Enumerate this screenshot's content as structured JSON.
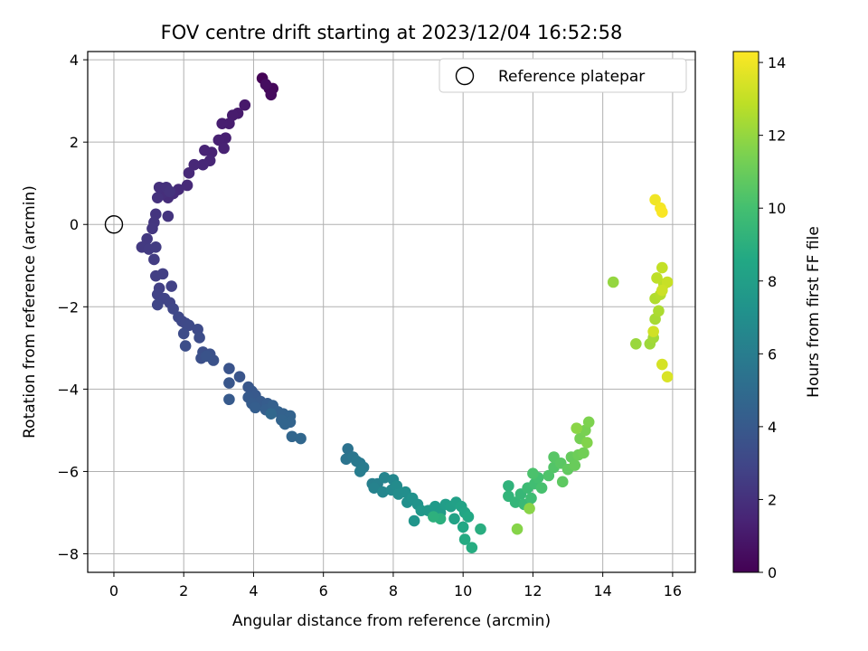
{
  "chart_data": {
    "type": "scatter",
    "title": "FOV centre drift starting at 2023/12/04 16:52:58",
    "xlabel": "Angular distance from reference (arcmin)",
    "ylabel": "Rotation from reference (arcmin)",
    "xlim": [
      -0.75,
      16.65
    ],
    "ylim": [
      -8.45,
      4.2
    ],
    "xticks": [
      0,
      2,
      4,
      6,
      8,
      10,
      12,
      14,
      16
    ],
    "yticks": [
      -8,
      -6,
      -4,
      -2,
      0,
      2,
      4
    ],
    "grid": true,
    "legend": {
      "placement": "top-right",
      "entries": [
        "Reference platepar"
      ]
    },
    "reference_point": {
      "x": 0,
      "y": 0,
      "label": "Reference platepar"
    },
    "colorbar": {
      "label": "Hours from first FF file",
      "colormap": "viridis",
      "range": [
        0,
        14.3
      ],
      "ticks": [
        0,
        2,
        4,
        6,
        8,
        10,
        12,
        14
      ]
    },
    "points": [
      [
        4.25,
        3.55,
        0.1
      ],
      [
        4.45,
        3.3,
        0.2
      ],
      [
        4.55,
        3.3,
        0.3
      ],
      [
        4.5,
        3.15,
        0.4
      ],
      [
        4.35,
        3.4,
        0.5
      ],
      [
        3.75,
        2.9,
        1.0
      ],
      [
        3.55,
        2.7,
        1.05
      ],
      [
        3.4,
        2.65,
        1.1
      ],
      [
        3.3,
        2.45,
        1.15
      ],
      [
        3.1,
        2.45,
        1.2
      ],
      [
        3.2,
        2.1,
        1.25
      ],
      [
        3.0,
        2.05,
        1.3
      ],
      [
        3.15,
        1.85,
        1.35
      ],
      [
        2.8,
        1.75,
        1.4
      ],
      [
        2.6,
        1.8,
        1.45
      ],
      [
        2.75,
        1.55,
        1.5
      ],
      [
        2.55,
        1.45,
        1.55
      ],
      [
        2.3,
        1.45,
        1.6
      ],
      [
        2.15,
        1.25,
        1.65
      ],
      [
        2.1,
        0.95,
        1.7
      ],
      [
        1.85,
        0.85,
        1.75
      ],
      [
        1.7,
        0.75,
        1.8
      ],
      [
        1.55,
        0.65,
        1.85
      ],
      [
        1.4,
        0.75,
        1.9
      ],
      [
        1.3,
        0.9,
        1.95
      ],
      [
        1.5,
        0.9,
        2.0
      ],
      [
        1.25,
        0.65,
        2.05
      ],
      [
        1.6,
        0.8,
        2.1
      ],
      [
        1.55,
        0.2,
        2.15
      ],
      [
        1.2,
        0.25,
        2.2
      ],
      [
        1.15,
        0.05,
        2.25
      ],
      [
        1.1,
        -0.1,
        2.3
      ],
      [
        0.95,
        -0.35,
        2.35
      ],
      [
        0.8,
        -0.55,
        2.4
      ],
      [
        1.0,
        -0.6,
        2.45
      ],
      [
        1.2,
        -0.55,
        2.5
      ],
      [
        1.15,
        -0.85,
        2.55
      ],
      [
        1.2,
        -1.25,
        2.6
      ],
      [
        1.4,
        -1.2,
        2.65
      ],
      [
        1.3,
        -1.55,
        2.7
      ],
      [
        1.65,
        -1.5,
        2.75
      ],
      [
        1.25,
        -1.7,
        2.8
      ],
      [
        1.45,
        -1.8,
        2.85
      ],
      [
        1.6,
        -1.9,
        2.9
      ],
      [
        1.25,
        -1.95,
        2.95
      ],
      [
        1.7,
        -2.05,
        3.0
      ],
      [
        1.85,
        -2.25,
        3.05
      ],
      [
        1.95,
        -2.35,
        3.1
      ],
      [
        2.05,
        -2.4,
        3.15
      ],
      [
        2.15,
        -2.45,
        3.2
      ],
      [
        2.4,
        -2.55,
        3.25
      ],
      [
        2.0,
        -2.65,
        3.3
      ],
      [
        2.45,
        -2.75,
        3.35
      ],
      [
        2.05,
        -2.95,
        3.4
      ],
      [
        2.55,
        -3.1,
        3.45
      ],
      [
        2.5,
        -3.25,
        3.5
      ],
      [
        2.75,
        -3.15,
        3.55
      ],
      [
        2.85,
        -3.3,
        3.6
      ],
      [
        2.65,
        -3.2,
        3.65
      ],
      [
        3.3,
        -3.5,
        3.7
      ],
      [
        3.6,
        -3.7,
        3.75
      ],
      [
        3.3,
        -3.85,
        3.8
      ],
      [
        3.85,
        -3.95,
        3.85
      ],
      [
        3.95,
        -4.05,
        3.9
      ],
      [
        4.05,
        -4.15,
        3.95
      ],
      [
        3.85,
        -4.2,
        4.0
      ],
      [
        3.3,
        -4.25,
        4.05
      ],
      [
        4.2,
        -4.3,
        4.1
      ],
      [
        3.95,
        -4.35,
        4.15
      ],
      [
        4.4,
        -4.35,
        4.2
      ],
      [
        4.05,
        -4.45,
        4.25
      ],
      [
        4.35,
        -4.5,
        4.3
      ],
      [
        4.55,
        -4.4,
        4.35
      ],
      [
        4.7,
        -4.55,
        4.4
      ],
      [
        4.85,
        -4.6,
        4.45
      ],
      [
        5.05,
        -4.65,
        4.5
      ],
      [
        4.8,
        -4.75,
        4.55
      ],
      [
        5.05,
        -4.8,
        4.6
      ],
      [
        4.9,
        -4.85,
        4.65
      ],
      [
        5.1,
        -5.15,
        4.7
      ],
      [
        5.35,
        -5.2,
        4.75
      ],
      [
        4.5,
        -4.6,
        4.8
      ],
      [
        6.7,
        -5.45,
        5.4
      ],
      [
        6.65,
        -5.7,
        5.5
      ],
      [
        6.85,
        -5.65,
        5.6
      ],
      [
        6.95,
        -5.75,
        5.7
      ],
      [
        7.05,
        -5.8,
        5.8
      ],
      [
        7.15,
        -5.9,
        5.9
      ],
      [
        7.05,
        -6.0,
        6.0
      ],
      [
        7.4,
        -6.3,
        6.1
      ],
      [
        7.55,
        -6.3,
        6.2
      ],
      [
        7.45,
        -6.4,
        6.3
      ],
      [
        7.75,
        -6.15,
        6.4
      ],
      [
        7.7,
        -6.5,
        6.5
      ],
      [
        8.0,
        -6.2,
        6.6
      ],
      [
        7.95,
        -6.45,
        6.7
      ],
      [
        8.1,
        -6.35,
        6.8
      ],
      [
        8.15,
        -6.55,
        6.9
      ],
      [
        8.35,
        -6.5,
        7.0
      ],
      [
        8.4,
        -6.75,
        7.1
      ],
      [
        8.55,
        -6.65,
        7.2
      ],
      [
        8.7,
        -6.8,
        7.3
      ],
      [
        8.6,
        -7.2,
        7.4
      ],
      [
        8.8,
        -6.95,
        7.5
      ],
      [
        9.0,
        -6.95,
        7.6
      ],
      [
        9.2,
        -6.85,
        7.7
      ],
      [
        9.35,
        -7.0,
        7.8
      ],
      [
        9.5,
        -6.8,
        7.9
      ],
      [
        9.65,
        -6.85,
        8.0
      ],
      [
        9.8,
        -6.75,
        8.1
      ],
      [
        9.75,
        -7.15,
        8.2
      ],
      [
        9.95,
        -6.85,
        8.3
      ],
      [
        10.05,
        -7.0,
        8.4
      ],
      [
        10.0,
        -7.35,
        8.5
      ],
      [
        10.15,
        -7.1,
        8.6
      ],
      [
        10.05,
        -7.65,
        8.7
      ],
      [
        10.25,
        -7.85,
        8.8
      ],
      [
        10.5,
        -7.4,
        8.9
      ],
      [
        9.35,
        -7.15,
        9.0
      ],
      [
        9.15,
        -7.1,
        9.1
      ],
      [
        11.3,
        -6.35,
        9.2
      ],
      [
        11.3,
        -6.6,
        9.3
      ],
      [
        11.5,
        -6.75,
        9.4
      ],
      [
        11.65,
        -6.55,
        9.5
      ],
      [
        11.75,
        -6.8,
        9.6
      ],
      [
        11.85,
        -6.4,
        9.7
      ],
      [
        11.95,
        -6.65,
        9.8
      ],
      [
        12.05,
        -6.3,
        9.9
      ],
      [
        12.15,
        -6.15,
        10.0
      ],
      [
        12.25,
        -6.4,
        10.1
      ],
      [
        12.0,
        -6.05,
        10.2
      ],
      [
        12.45,
        -6.1,
        10.3
      ],
      [
        12.6,
        -5.9,
        10.4
      ],
      [
        12.6,
        -5.65,
        10.5
      ],
      [
        12.8,
        -5.8,
        10.6
      ],
      [
        12.85,
        -6.25,
        10.7
      ],
      [
        13.0,
        -5.95,
        10.8
      ],
      [
        13.1,
        -5.65,
        10.9
      ],
      [
        13.2,
        -5.85,
        11.0
      ],
      [
        13.3,
        -5.6,
        11.1
      ],
      [
        13.45,
        -5.55,
        11.2
      ],
      [
        13.35,
        -5.2,
        11.3
      ],
      [
        13.5,
        -5.0,
        11.4
      ],
      [
        13.6,
        -4.8,
        11.5
      ],
      [
        13.55,
        -5.3,
        11.6
      ],
      [
        11.55,
        -7.4,
        11.7
      ],
      [
        11.9,
        -6.9,
        11.75
      ],
      [
        13.25,
        -4.95,
        11.8
      ],
      [
        14.3,
        -1.4,
        12.0
      ],
      [
        14.95,
        -2.9,
        12.1
      ],
      [
        15.35,
        -2.9,
        12.2
      ],
      [
        15.45,
        -2.75,
        12.3
      ],
      [
        15.5,
        -2.3,
        12.4
      ],
      [
        15.6,
        -2.1,
        12.5
      ],
      [
        15.5,
        -1.8,
        12.6
      ],
      [
        15.65,
        -1.7,
        12.7
      ],
      [
        15.75,
        -1.45,
        12.8
      ],
      [
        15.55,
        -1.3,
        12.9
      ],
      [
        15.7,
        -1.05,
        13.0
      ],
      [
        15.85,
        -1.4,
        13.1
      ],
      [
        15.7,
        -1.6,
        13.2
      ],
      [
        15.45,
        -2.6,
        13.3
      ],
      [
        15.7,
        -3.4,
        13.4
      ],
      [
        15.85,
        -3.7,
        13.5
      ],
      [
        15.5,
        0.6,
        14.0
      ],
      [
        15.65,
        0.4,
        14.1
      ],
      [
        15.7,
        0.3,
        14.2
      ]
    ]
  }
}
